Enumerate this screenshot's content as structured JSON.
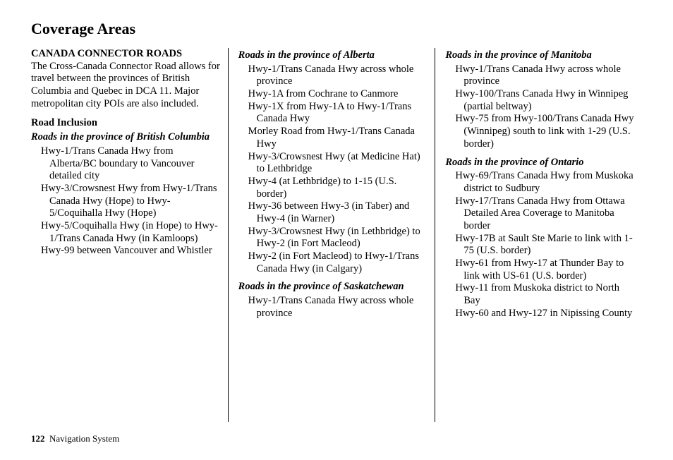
{
  "title": "Coverage Areas",
  "footer": {
    "page": "122",
    "label": "Navigation System"
  },
  "col1": {
    "heading": "CANADA CONNECTOR ROADS",
    "intro": "The Cross-Canada Connector Road allows for travel between the provinces of British Columbia and Quebec in DCA 11. Major metropolitan city POIs are also included.",
    "sub": "Road Inclusion",
    "bc_heading": "Roads in the province of British Columbia",
    "bc_roads": [
      "Hwy-1/Trans Canada Hwy from Alberta/BC boundary to Vancouver detailed city",
      "Hwy-3/Crowsnest Hwy from Hwy-1/Trans Canada Hwy (Hope) to Hwy-5/Coquihalla Hwy (Hope)",
      "Hwy-5/Coquihalla Hwy (in Hope) to Hwy-1/Trans Canada Hwy (in Kamloops)",
      "Hwy-99 between Vancouver and Whistler"
    ]
  },
  "col2": {
    "ab_heading": "Roads in the province of Alberta",
    "ab_roads": [
      "Hwy-1/Trans Canada Hwy across whole province",
      "Hwy-1A from Cochrane to Canmore",
      "Hwy-1X from Hwy-1A to Hwy-1/Trans Canada Hwy",
      "Morley Road from Hwy-1/Trans Canada Hwy",
      "Hwy-3/Crowsnest Hwy (at Medicine Hat) to Lethbridge",
      "Hwy-4 (at Lethbridge) to 1-15 (U.S. border)",
      "Hwy-36 between Hwy-3 (in Taber) and Hwy-4 (in Warner)",
      "Hwy-3/Crowsnest Hwy (in Lethbridge) to Hwy-2 (in Fort Macleod)",
      "Hwy-2 (in Fort Macleod) to Hwy-1/Trans Canada Hwy (in Calgary)"
    ],
    "sk_heading": "Roads in the province of Saskatchewan",
    "sk_roads": [
      "Hwy-1/Trans Canada Hwy across whole province"
    ]
  },
  "col3": {
    "mb_heading": "Roads in the province of Manitoba",
    "mb_roads": [
      "Hwy-1/Trans Canada Hwy across whole province",
      "Hwy-100/Trans Canada Hwy in Winnipeg (partial beltway)",
      "Hwy-75 from Hwy-100/Trans Canada Hwy (Winnipeg) south to link with 1-29 (U.S. border)"
    ],
    "on_heading": "Roads in the province of Ontario",
    "on_roads": [
      "Hwy-69/Trans Canada Hwy from Muskoka district to Sudbury",
      "Hwy-17/Trans Canada Hwy from Ottawa Detailed Area Coverage to Manitoba border",
      "Hwy-17B at Sault Ste Marie to link with 1-75 (U.S. border)",
      "Hwy-61 from Hwy-17 at Thunder Bay to link with US-61 (U.S. border)",
      "Hwy-11 from Muskoka district to North Bay",
      "Hwy-60 and Hwy-127 in Nipissing County"
    ]
  }
}
